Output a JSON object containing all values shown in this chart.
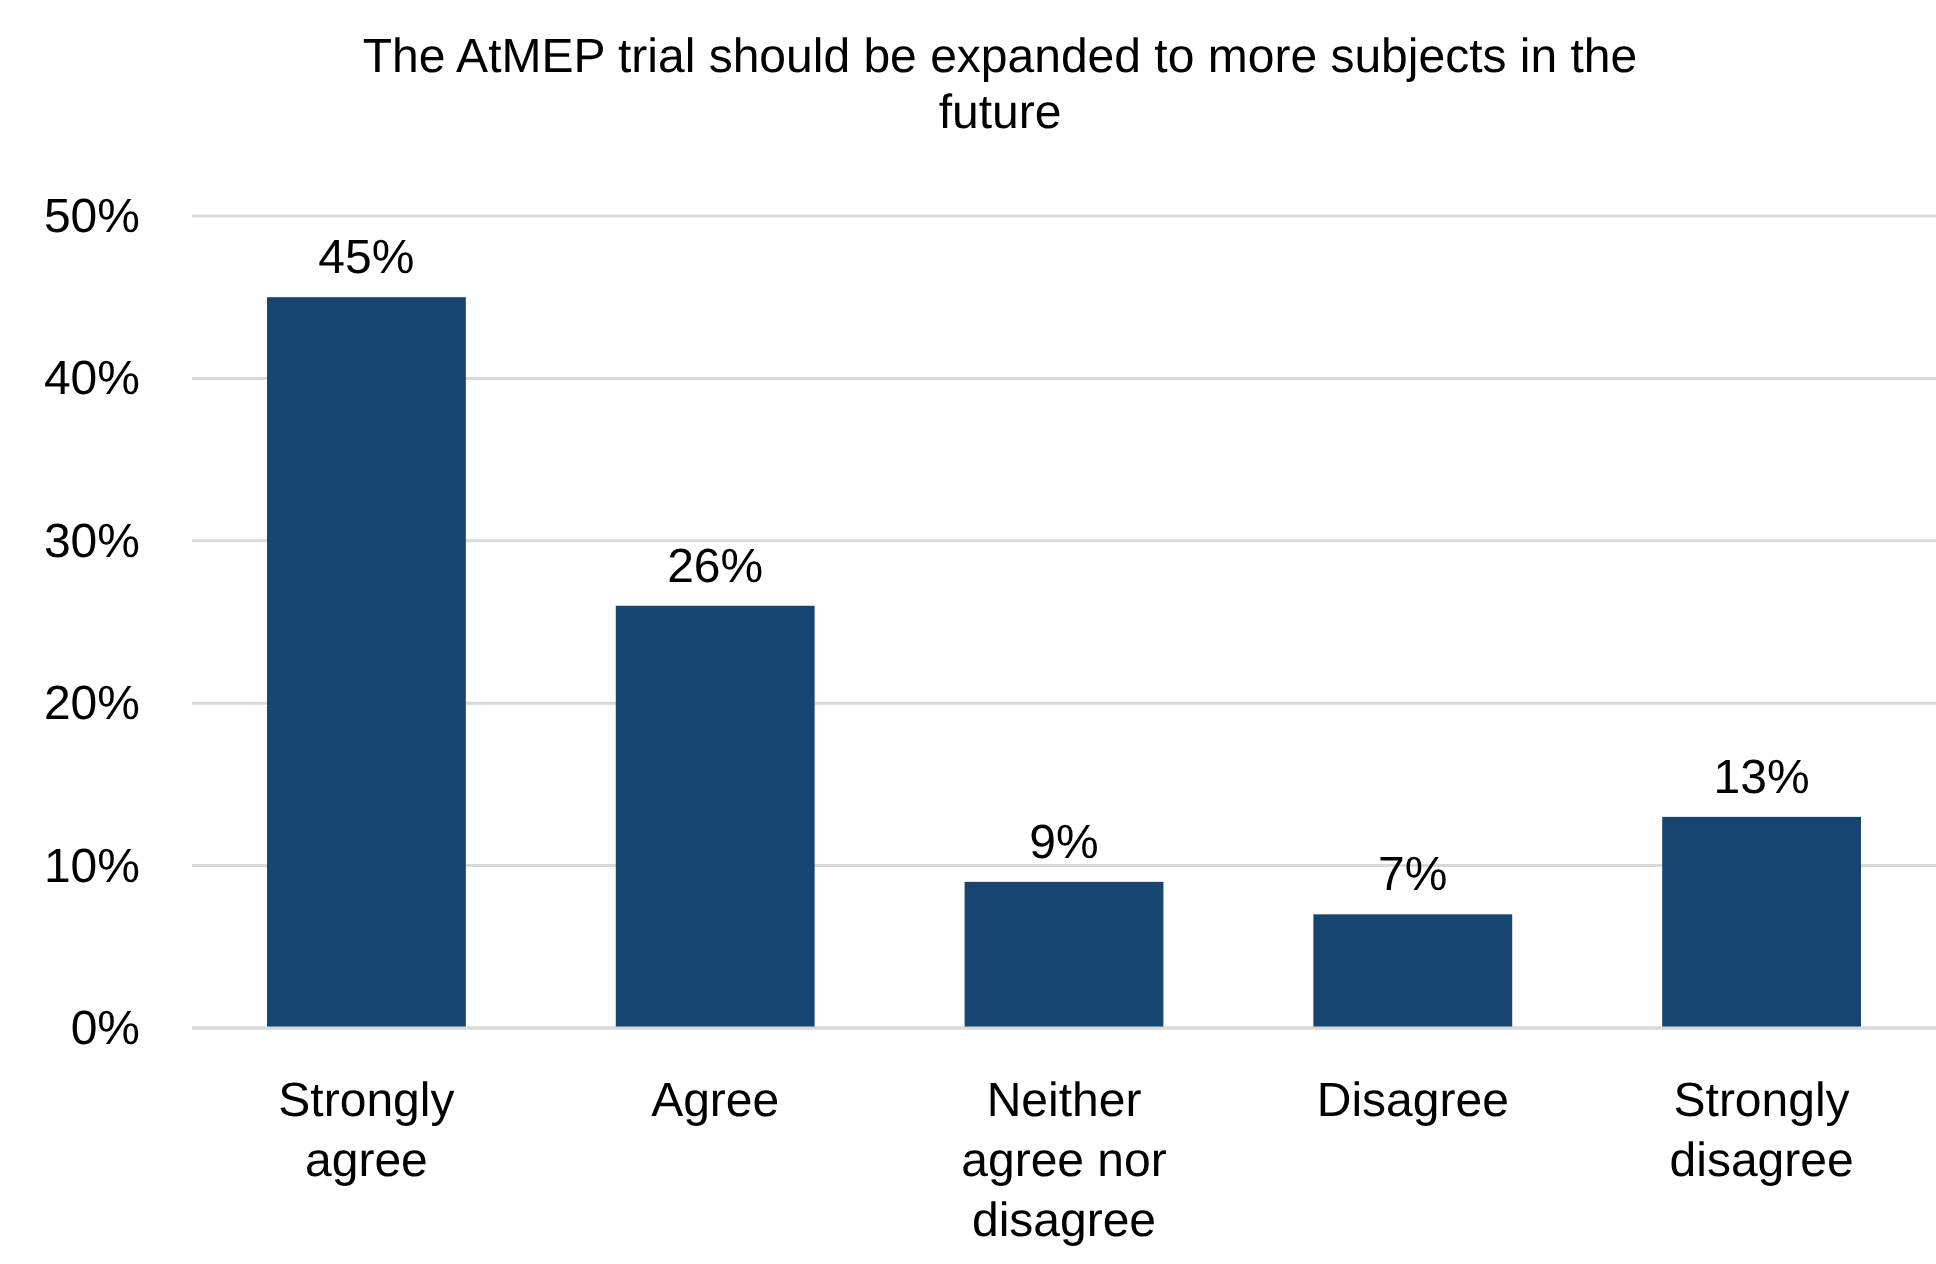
{
  "chart_data": {
    "type": "bar",
    "title": "The AtMEP trial should be expanded to more subjects in the future",
    "categories": [
      "Strongly agree",
      "Agree",
      "Neither agree nor disagree",
      "Disagree",
      "Strongly disagree"
    ],
    "values": [
      45,
      26,
      9,
      7,
      13
    ],
    "color": "#154570",
    "value_labels": [
      "45%",
      "26%",
      "9%",
      "7%",
      "13%"
    ],
    "ylim": [
      0,
      50
    ],
    "yticks": [
      {
        "value": 0,
        "label": "0%"
      },
      {
        "value": 10,
        "label": "10%"
      },
      {
        "value": 20,
        "label": "20%"
      },
      {
        "value": 30,
        "label": "30%"
      },
      {
        "value": 40,
        "label": "40%"
      },
      {
        "value": 50,
        "label": "50%"
      }
    ],
    "grid": "y"
  }
}
